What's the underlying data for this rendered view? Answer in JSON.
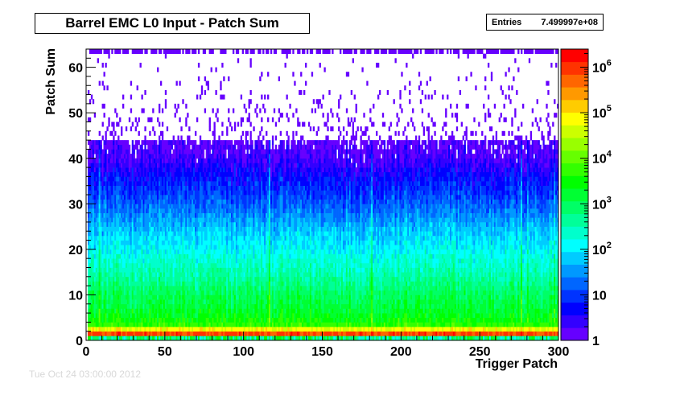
{
  "title": "Barrel EMC L0 Input - Patch Sum",
  "stats": {
    "label": "Entries",
    "value": "7.499997e+08"
  },
  "footer": "Tue Oct 24 03:00:00 2012",
  "chart_data": {
    "type": "heatmap",
    "title": "Barrel EMC L0 Input - Patch Sum",
    "xlabel": "Trigger Patch",
    "ylabel": "Patch Sum",
    "xlim": [
      0,
      300
    ],
    "ylim": [
      0,
      64
    ],
    "x_ticks": [
      0,
      50,
      100,
      150,
      200,
      250,
      300
    ],
    "y_ticks": [
      0,
      10,
      20,
      30,
      40,
      50,
      60
    ],
    "z_scale": "log",
    "zlim": [
      1,
      2500000
    ],
    "z_ticks": [
      {
        "value": 1,
        "label": "1"
      },
      {
        "value": 10,
        "label": "10"
      },
      {
        "value": 100,
        "label": "10^2"
      },
      {
        "value": 1000,
        "label": "10^3"
      },
      {
        "value": 10000,
        "label": "10^4"
      },
      {
        "value": 100000,
        "label": "10^5"
      },
      {
        "value": 1000000,
        "label": "10^6"
      }
    ],
    "palette": [
      "#6600ff",
      "#3300ff",
      "#0000ff",
      "#0033ff",
      "#0066ff",
      "#0099ff",
      "#00ccff",
      "#00ffff",
      "#00ffcc",
      "#00ff99",
      "#00ff66",
      "#00ff33",
      "#00ff00",
      "#33ff00",
      "#66ff00",
      "#99ff00",
      "#ccff00",
      "#ffff00",
      "#ffcc00",
      "#ff9900",
      "#ff6600",
      "#ff3300",
      "#ff0000"
    ],
    "profile_description": "Counts per bin fall with Patch Sum: peak ~1e6 at Patch Sum 1-2, ~1e3 near 10, ~1e2 near 20, ~10 near 30, ~1 near 40; sparse single counts above 40; dense row at Patch Sum 63",
    "profile_sum": [
      0,
      1,
      2,
      3,
      5,
      8,
      10,
      15,
      20,
      25,
      30,
      35,
      40,
      45,
      55,
      63
    ],
    "profile_log10_counts": [
      2.4,
      6.0,
      5.8,
      3.8,
      3.4,
      3.1,
      3.0,
      2.5,
      2.1,
      1.7,
      1.2,
      0.8,
      0.3,
      0.05,
      0.0,
      0.2
    ],
    "hot_patches": [
      8,
      116,
      181,
      233,
      276,
      280,
      297
    ]
  }
}
